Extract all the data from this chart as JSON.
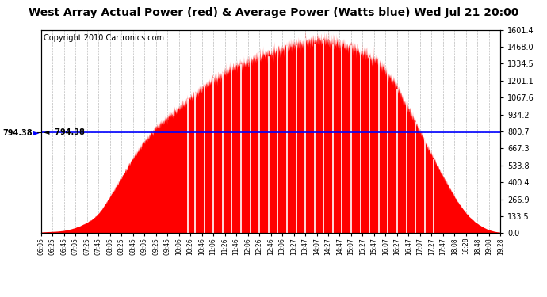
{
  "title": "West Array Actual Power (red) & Average Power (Watts blue) Wed Jul 21 20:00",
  "copyright": "Copyright 2010 Cartronics.com",
  "average_power": 794.38,
  "ymax": 1601.4,
  "ymin": 0.0,
  "yticks_right": [
    0.0,
    133.5,
    266.9,
    400.4,
    533.8,
    667.3,
    800.7,
    934.2,
    1067.6,
    1201.1,
    1334.5,
    1468.0,
    1601.4
  ],
  "fill_color": "#FF0000",
  "line_color": "#FF0000",
  "avg_line_color": "#0000FF",
  "background_color": "#FFFFFF",
  "grid_color": "#AAAAAA",
  "title_fontsize": 10,
  "copyright_fontsize": 7,
  "x_labels": [
    "06:05",
    "06:25",
    "06:45",
    "07:05",
    "07:25",
    "07:45",
    "08:05",
    "08:25",
    "08:45",
    "09:05",
    "09:25",
    "09:45",
    "10:06",
    "10:26",
    "10:46",
    "11:06",
    "11:26",
    "11:46",
    "12:06",
    "12:26",
    "12:46",
    "13:06",
    "13:27",
    "13:47",
    "14:07",
    "14:27",
    "14:47",
    "15:07",
    "15:27",
    "15:47",
    "16:07",
    "16:27",
    "16:47",
    "17:07",
    "17:27",
    "17:47",
    "18:08",
    "18:28",
    "18:48",
    "19:08",
    "19:28"
  ],
  "base_curve": [
    5,
    10,
    18,
    40,
    80,
    150,
    280,
    430,
    580,
    710,
    820,
    900,
    980,
    1060,
    1130,
    1200,
    1260,
    1310,
    1350,
    1390,
    1420,
    1450,
    1480,
    1500,
    1520,
    1510,
    1490,
    1460,
    1420,
    1370,
    1280,
    1150,
    980,
    800,
    620,
    450,
    290,
    160,
    75,
    25,
    5
  ]
}
